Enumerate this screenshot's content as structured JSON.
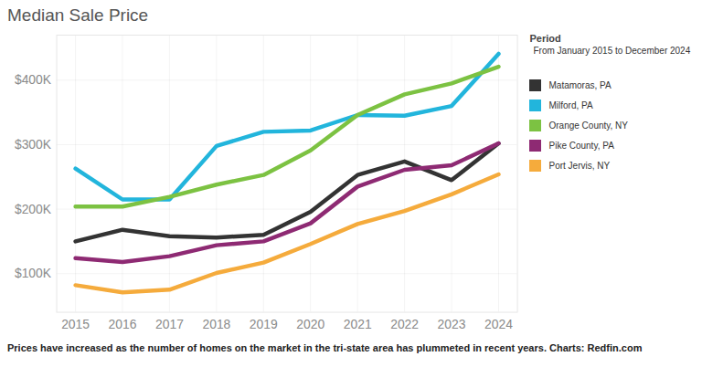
{
  "chart_data": {
    "type": "line",
    "title": "Median Sale Price",
    "legend_title": "Period",
    "subtitle": "From January 2015 to December 2024",
    "caption": "Prices have increased as the number of homes on the market in the tri-state area has plummeted in recent years. Charts: Redfin.com",
    "x": [
      2015,
      2016,
      2017,
      2018,
      2019,
      2020,
      2021,
      2022,
      2023,
      2024
    ],
    "xlim": [
      2014.6,
      2024.4
    ],
    "xticks": [
      2015,
      2016,
      2017,
      2018,
      2019,
      2020,
      2021,
      2022,
      2023,
      2024
    ],
    "ylim": [
      40000,
      470000
    ],
    "yticks": [
      {
        "value": 100000,
        "label": "$100K"
      },
      {
        "value": 200000,
        "label": "$200K"
      },
      {
        "value": 300000,
        "label": "$300K"
      },
      {
        "value": 400000,
        "label": "$400K"
      }
    ],
    "grid": true,
    "legend": "right",
    "series": [
      {
        "name": "Matamoras, PA",
        "color": "#333333",
        "values": [
          150000,
          168000,
          158000,
          156000,
          160000,
          196000,
          253000,
          274000,
          245000,
          302000
        ]
      },
      {
        "name": "Milford, PA",
        "color": "#22b5dc",
        "values": [
          263000,
          215000,
          215000,
          298000,
          320000,
          322000,
          346000,
          345000,
          360000,
          441000
        ]
      },
      {
        "name": "Orange County, NY",
        "color": "#7cc242",
        "values": [
          204000,
          204000,
          219000,
          238000,
          253000,
          291000,
          346000,
          378000,
          395000,
          421000
        ]
      },
      {
        "name": "Pike County, PA",
        "color": "#8e2a73",
        "values": [
          124000,
          118000,
          127000,
          144000,
          150000,
          178000,
          235000,
          261000,
          268000,
          302000
        ]
      },
      {
        "name": "Port Jervis, NY",
        "color": "#f5ab3c",
        "values": [
          82000,
          71000,
          75000,
          101000,
          117000,
          146000,
          177000,
          197000,
          223000,
          254000
        ]
      }
    ]
  }
}
